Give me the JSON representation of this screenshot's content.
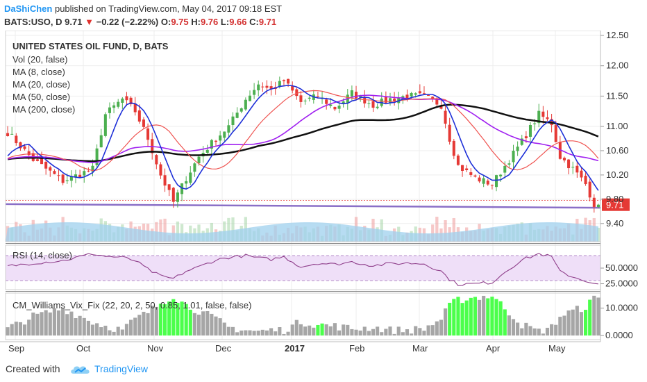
{
  "header": {
    "author": "DaShiChen",
    "published": "published on TradingView.com, May 04, 2017 09:18 EST",
    "symbol": "BATS:USO, D",
    "last": "9.71",
    "change": "−0.22 (−2.22%)",
    "o_label": "O:",
    "o": "9.75",
    "h_label": "H:",
    "h": "9.76",
    "l_label": "L:",
    "l": "9.66",
    "c_label": "C:",
    "c": "9.71"
  },
  "legend": {
    "title": "UNITED STATES OIL FUND, D, BATS",
    "items": [
      "Vol (20, false)",
      "MA (8, close)",
      "MA (20, close)",
      "MA (50, close)",
      "MA (200, close)"
    ]
  },
  "rsi_label": "RSI (14, close)",
  "vix_label": "CM_Williams_Vix_Fix (22, 20, 2, 50, 0.85, 1.01, false, false)",
  "footer": {
    "created": "Created with",
    "brand": "TradingView"
  },
  "colors": {
    "up": "#4caf50",
    "down": "#e53935",
    "ma8": "#1e30d8",
    "ma20": "#ef5350",
    "ma50": "#a020f0",
    "ma200": "#111111",
    "support": "#8a6fc7",
    "volume": "#9fd0ee",
    "rsi_line": "#8e3d8a",
    "rsi_band": "#efdff8",
    "vix_green": "#4cff4c",
    "vix_gray": "#a6a6a6",
    "price_badge": "#e53935"
  },
  "chart_data": [
    {
      "type": "candlestick",
      "title": "UNITED STATES OIL FUND, D, BATS",
      "y_ticks": [
        12.5,
        12.0,
        11.5,
        11.0,
        10.6,
        10.2,
        9.8,
        9.4
      ],
      "y_tick_labels": [
        "12.50",
        "12.00",
        "11.50",
        "11.00",
        "10.60",
        "10.20",
        "9.80",
        "9.40"
      ],
      "ylim": [
        9.1,
        12.58
      ],
      "x_labels": [
        "Sep",
        "Oct",
        "Nov",
        "Dec",
        "2017",
        "Feb",
        "Mar",
        "Apr",
        "May"
      ],
      "last_price": "9.71",
      "support_line": [
        9.72,
        9.66
      ],
      "anchors": [
        [
          0,
          10.9
        ],
        [
          6,
          10.45
        ],
        [
          13,
          10.1
        ],
        [
          20,
          10.3
        ],
        [
          23,
          11.2
        ],
        [
          27,
          11.45
        ],
        [
          30,
          11.25
        ],
        [
          33,
          10.8
        ],
        [
          36,
          10.2
        ],
        [
          39,
          9.75
        ],
        [
          42,
          10.15
        ],
        [
          45,
          10.5
        ],
        [
          49,
          10.8
        ],
        [
          52,
          11.0
        ],
        [
          56,
          11.45
        ],
        [
          59,
          11.7
        ],
        [
          62,
          11.6
        ],
        [
          65,
          11.75
        ],
        [
          69,
          11.4
        ],
        [
          73,
          11.5
        ],
        [
          77,
          11.3
        ],
        [
          81,
          11.55
        ],
        [
          86,
          11.35
        ],
        [
          90,
          11.45
        ],
        [
          94,
          11.5
        ],
        [
          98,
          11.5
        ],
        [
          102,
          11.35
        ],
        [
          104,
          10.8
        ],
        [
          106,
          10.35
        ],
        [
          110,
          10.15
        ],
        [
          114,
          10.05
        ],
        [
          117,
          10.35
        ],
        [
          121,
          10.75
        ],
        [
          125,
          11.2
        ],
        [
          128,
          11.05
        ],
        [
          130,
          10.5
        ],
        [
          133,
          10.3
        ],
        [
          136,
          10.05
        ],
        [
          138,
          9.72
        ]
      ]
    },
    {
      "type": "line",
      "title": "RSI (14, close)",
      "y_ticks": [
        50,
        25
      ],
      "y_tick_labels": [
        "50.0000",
        "25.0000"
      ],
      "band": [
        30,
        70
      ],
      "anchors": [
        [
          0,
          53
        ],
        [
          6,
          58
        ],
        [
          13,
          62
        ],
        [
          20,
          73
        ],
        [
          23,
          69
        ],
        [
          27,
          67
        ],
        [
          30,
          62
        ],
        [
          33,
          48
        ],
        [
          36,
          37
        ],
        [
          39,
          33
        ],
        [
          42,
          45
        ],
        [
          45,
          52
        ],
        [
          49,
          63
        ],
        [
          52,
          67
        ],
        [
          56,
          70
        ],
        [
          59,
          66
        ],
        [
          62,
          64
        ],
        [
          65,
          68
        ],
        [
          69,
          52
        ],
        [
          73,
          58
        ],
        [
          77,
          56
        ],
        [
          81,
          60
        ],
        [
          86,
          54
        ],
        [
          90,
          57
        ],
        [
          94,
          58
        ],
        [
          98,
          57
        ],
        [
          102,
          45
        ],
        [
          104,
          32
        ],
        [
          106,
          24
        ],
        [
          110,
          25
        ],
        [
          114,
          27
        ],
        [
          117,
          44
        ],
        [
          121,
          63
        ],
        [
          125,
          73
        ],
        [
          128,
          68
        ],
        [
          130,
          44
        ],
        [
          133,
          36
        ],
        [
          136,
          30
        ],
        [
          138,
          24
        ]
      ]
    },
    {
      "type": "bar",
      "title": "CM_Williams_Vix_Fix (22, 20, 2, 50, 0.85, 1.01, false, false)",
      "y_ticks": [
        10,
        0
      ],
      "y_tick_labels": [
        "10.0000",
        "0.0000"
      ],
      "ylim": [
        -1.5,
        15.5
      ],
      "green_days": [
        [
          36,
          43
        ],
        [
          73,
          74
        ],
        [
          104,
          110
        ],
        [
          113,
          117
        ],
        [
          136,
          137
        ]
      ],
      "anchors": [
        [
          0,
          2.5
        ],
        [
          6,
          7
        ],
        [
          13,
          10
        ],
        [
          20,
          5
        ],
        [
          23,
          3.5
        ],
        [
          27,
          2
        ],
        [
          30,
          6
        ],
        [
          33,
          8.5
        ],
        [
          36,
          12
        ],
        [
          39,
          14.5
        ],
        [
          42,
          11
        ],
        [
          45,
          9
        ],
        [
          49,
          6
        ],
        [
          52,
          3
        ],
        [
          56,
          2
        ],
        [
          59,
          1.5
        ],
        [
          62,
          2
        ],
        [
          65,
          2
        ],
        [
          69,
          5
        ],
        [
          73,
          4
        ],
        [
          77,
          3.5
        ],
        [
          81,
          2.5
        ],
        [
          86,
          3
        ],
        [
          90,
          2
        ],
        [
          94,
          2
        ],
        [
          98,
          2.5
        ],
        [
          102,
          6
        ],
        [
          104,
          11
        ],
        [
          106,
          13
        ],
        [
          110,
          14
        ],
        [
          114,
          14.5
        ],
        [
          117,
          10
        ],
        [
          121,
          4
        ],
        [
          125,
          1.5
        ],
        [
          128,
          3
        ],
        [
          130,
          7
        ],
        [
          133,
          9
        ],
        [
          136,
          10.5
        ],
        [
          138,
          13.5
        ]
      ]
    }
  ]
}
